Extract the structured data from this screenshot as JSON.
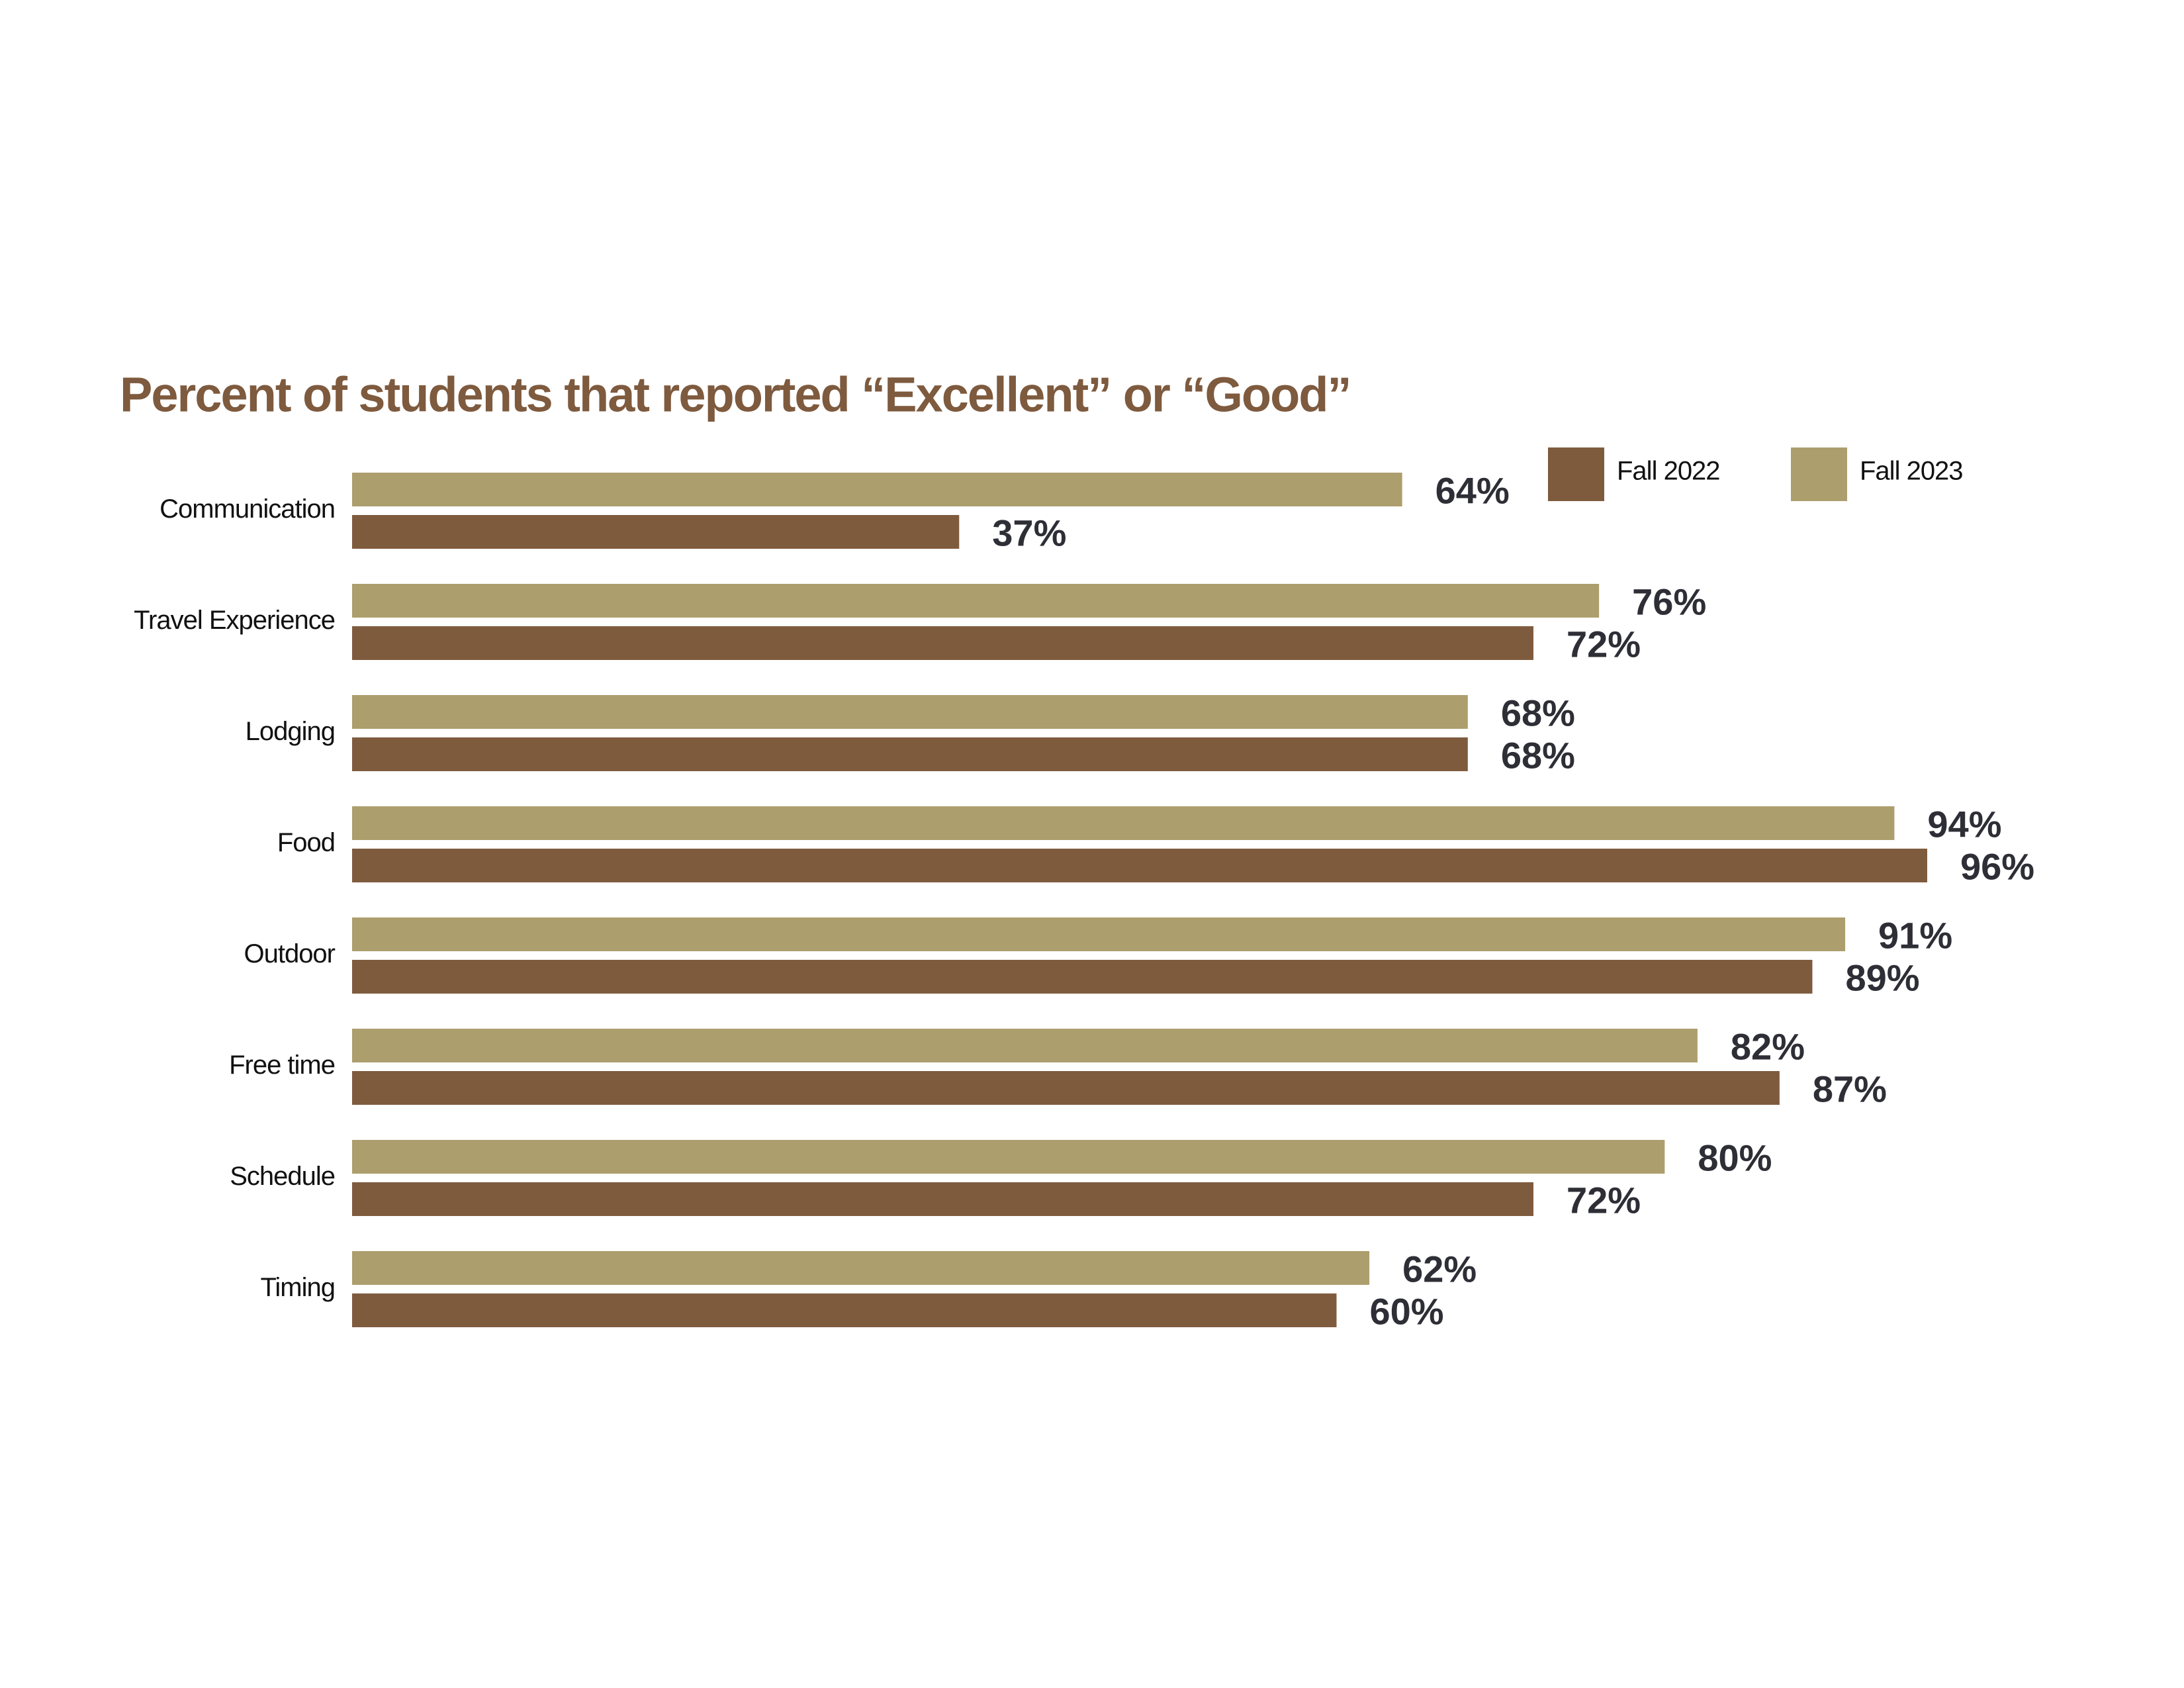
{
  "chart_data": {
    "type": "hbar",
    "title": "Percent of students that reported “Excellent” or “Good”",
    "categories": [
      "Communication",
      "Travel Experience",
      "Lodging",
      "Food",
      "Outdoor",
      "Free time",
      "Schedule",
      "Timing"
    ],
    "series": [
      {
        "name": "Fall 2022",
        "color": "#7f5b3e",
        "values": [
          37,
          72,
          68,
          96,
          89,
          87,
          72,
          60
        ],
        "value_labels": [
          "37%",
          "72%",
          "68%",
          "96%",
          "89%",
          "87%",
          "72%",
          "60%"
        ]
      },
      {
        "name": "Fall 2023",
        "color": "#ad9e6d",
        "values": [
          64,
          76,
          68,
          94,
          91,
          82,
          80,
          62
        ],
        "value_labels": [
          "64%",
          "76%",
          "68%",
          "94%",
          "91%",
          "82%",
          "80%",
          "62%"
        ]
      }
    ],
    "legend": "top-right"
  }
}
